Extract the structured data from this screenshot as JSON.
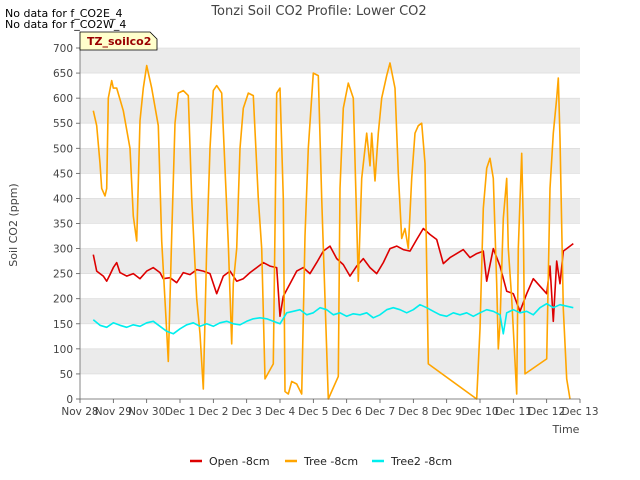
{
  "chart_data": {
    "type": "line",
    "title": "Tonzi Soil CO2 Profile: Lower CO2",
    "xlabel": "Time",
    "ylabel": "Soil CO2 (ppm)",
    "ylim": [
      0,
      700
    ],
    "yticks": [
      0,
      50,
      100,
      150,
      200,
      250,
      300,
      350,
      400,
      450,
      500,
      550,
      600,
      650,
      700
    ],
    "xlim": [
      0,
      15
    ],
    "xticks": [
      {
        "x": 0,
        "label": "Nov 28"
      },
      {
        "x": 1,
        "label": "Nov 29"
      },
      {
        "x": 2,
        "label": "Nov 30"
      },
      {
        "x": 3,
        "label": "Dec 1"
      },
      {
        "x": 4,
        "label": "Dec 2"
      },
      {
        "x": 5,
        "label": "Dec 3"
      },
      {
        "x": 6,
        "label": "Dec 4"
      },
      {
        "x": 7,
        "label": "Dec 5"
      },
      {
        "x": 8,
        "label": "Dec 6"
      },
      {
        "x": 9,
        "label": "Dec 7"
      },
      {
        "x": 10,
        "label": "Dec 8"
      },
      {
        "x": 11,
        "label": "Dec 9"
      },
      {
        "x": 12,
        "label": "Dec 10"
      },
      {
        "x": 13,
        "label": "Dec 11"
      },
      {
        "x": 14,
        "label": "Dec 12"
      },
      {
        "x": 15,
        "label": "Dec 13"
      }
    ],
    "notices": [
      "No data for f_CO2E_4",
      "No data for f_CO2W_4"
    ],
    "site_label": "TZ_soilco2",
    "legend_position": "bottom-center",
    "series": [
      {
        "name": "Open -8cm",
        "color": "#dd0000",
        "points": [
          [
            0.4,
            288
          ],
          [
            0.5,
            255
          ],
          [
            0.7,
            245
          ],
          [
            0.8,
            235
          ],
          [
            0.9,
            248
          ],
          [
            1.0,
            262
          ],
          [
            1.1,
            272
          ],
          [
            1.2,
            252
          ],
          [
            1.4,
            245
          ],
          [
            1.6,
            250
          ],
          [
            1.8,
            240
          ],
          [
            2.0,
            255
          ],
          [
            2.2,
            262
          ],
          [
            2.4,
            252
          ],
          [
            2.5,
            240
          ],
          [
            2.7,
            242
          ],
          [
            2.9,
            232
          ],
          [
            3.1,
            252
          ],
          [
            3.3,
            248
          ],
          [
            3.5,
            258
          ],
          [
            3.7,
            255
          ],
          [
            3.9,
            250
          ],
          [
            4.1,
            210
          ],
          [
            4.3,
            245
          ],
          [
            4.5,
            255
          ],
          [
            4.7,
            235
          ],
          [
            4.9,
            240
          ],
          [
            5.1,
            252
          ],
          [
            5.3,
            262
          ],
          [
            5.5,
            272
          ],
          [
            5.7,
            265
          ],
          [
            5.9,
            262
          ],
          [
            6.0,
            165
          ],
          [
            6.1,
            205
          ],
          [
            6.3,
            230
          ],
          [
            6.5,
            255
          ],
          [
            6.7,
            262
          ],
          [
            6.9,
            250
          ],
          [
            7.1,
            272
          ],
          [
            7.3,
            295
          ],
          [
            7.5,
            305
          ],
          [
            7.7,
            280
          ],
          [
            7.9,
            268
          ],
          [
            8.1,
            245
          ],
          [
            8.3,
            265
          ],
          [
            8.5,
            280
          ],
          [
            8.7,
            262
          ],
          [
            8.9,
            250
          ],
          [
            9.1,
            272
          ],
          [
            9.3,
            300
          ],
          [
            9.5,
            305
          ],
          [
            9.7,
            298
          ],
          [
            9.9,
            295
          ],
          [
            10.1,
            318
          ],
          [
            10.3,
            340
          ],
          [
            10.5,
            328
          ],
          [
            10.7,
            318
          ],
          [
            10.9,
            270
          ],
          [
            11.1,
            282
          ],
          [
            11.3,
            290
          ],
          [
            11.5,
            298
          ],
          [
            11.7,
            282
          ],
          [
            11.9,
            290
          ],
          [
            12.1,
            295
          ],
          [
            12.2,
            235
          ],
          [
            12.4,
            300
          ],
          [
            12.6,
            265
          ],
          [
            12.8,
            215
          ],
          [
            13.0,
            210
          ],
          [
            13.2,
            175
          ],
          [
            13.4,
            210
          ],
          [
            13.6,
            240
          ],
          [
            13.8,
            225
          ],
          [
            14.0,
            210
          ],
          [
            14.1,
            265
          ],
          [
            14.2,
            155
          ],
          [
            14.3,
            275
          ],
          [
            14.4,
            230
          ],
          [
            14.5,
            295
          ],
          [
            14.6,
            300
          ],
          [
            14.8,
            310
          ]
        ]
      },
      {
        "name": "Tree -8cm",
        "color": "#ffa500",
        "points": [
          [
            0.4,
            575
          ],
          [
            0.5,
            545
          ],
          [
            0.6,
            470
          ],
          [
            0.65,
            420
          ],
          [
            0.75,
            405
          ],
          [
            0.8,
            420
          ],
          [
            0.85,
            600
          ],
          [
            0.95,
            635
          ],
          [
            1.0,
            620
          ],
          [
            1.1,
            620
          ],
          [
            1.3,
            575
          ],
          [
            1.5,
            500
          ],
          [
            1.6,
            365
          ],
          [
            1.7,
            315
          ],
          [
            1.8,
            555
          ],
          [
            1.9,
            620
          ],
          [
            2.0,
            665
          ],
          [
            2.15,
            620
          ],
          [
            2.35,
            545
          ],
          [
            2.45,
            315
          ],
          [
            2.6,
            135
          ],
          [
            2.65,
            75
          ],
          [
            2.75,
            325
          ],
          [
            2.85,
            550
          ],
          [
            2.95,
            610
          ],
          [
            3.1,
            615
          ],
          [
            3.25,
            605
          ],
          [
            3.35,
            400
          ],
          [
            3.5,
            200
          ],
          [
            3.6,
            130
          ],
          [
            3.7,
            20
          ],
          [
            3.8,
            300
          ],
          [
            3.9,
            500
          ],
          [
            4.0,
            615
          ],
          [
            4.1,
            625
          ],
          [
            4.25,
            610
          ],
          [
            4.45,
            310
          ],
          [
            4.55,
            110
          ],
          [
            4.6,
            230
          ],
          [
            4.7,
            300
          ],
          [
            4.8,
            500
          ],
          [
            4.9,
            580
          ],
          [
            5.05,
            610
          ],
          [
            5.2,
            605
          ],
          [
            5.35,
            400
          ],
          [
            5.45,
            300
          ],
          [
            5.55,
            40
          ],
          [
            5.8,
            70
          ],
          [
            5.9,
            610
          ],
          [
            6.0,
            620
          ],
          [
            6.1,
            400
          ],
          [
            6.15,
            15
          ],
          [
            6.25,
            10
          ],
          [
            6.35,
            35
          ],
          [
            6.5,
            30
          ],
          [
            6.65,
            10
          ],
          [
            6.75,
            325
          ],
          [
            6.85,
            500
          ],
          [
            7.0,
            650
          ],
          [
            7.15,
            645
          ],
          [
            7.25,
            400
          ],
          [
            7.35,
            200
          ],
          [
            7.45,
            0
          ],
          [
            7.75,
            45
          ],
          [
            7.8,
            420
          ],
          [
            7.9,
            580
          ],
          [
            8.05,
            630
          ],
          [
            8.2,
            600
          ],
          [
            8.35,
            235
          ],
          [
            8.45,
            440
          ],
          [
            8.6,
            530
          ],
          [
            8.7,
            465
          ],
          [
            8.75,
            530
          ],
          [
            8.85,
            435
          ],
          [
            8.95,
            530
          ],
          [
            9.05,
            600
          ],
          [
            9.2,
            645
          ],
          [
            9.3,
            670
          ],
          [
            9.45,
            620
          ],
          [
            9.55,
            450
          ],
          [
            9.65,
            320
          ],
          [
            9.75,
            340
          ],
          [
            9.85,
            300
          ],
          [
            9.95,
            440
          ],
          [
            10.05,
            530
          ],
          [
            10.15,
            545
          ],
          [
            10.25,
            550
          ],
          [
            10.35,
            470
          ],
          [
            10.45,
            70
          ],
          [
            11.9,
            0
          ],
          [
            12.0,
            140
          ],
          [
            12.1,
            380
          ],
          [
            12.2,
            460
          ],
          [
            12.3,
            480
          ],
          [
            12.4,
            440
          ],
          [
            12.5,
            230
          ],
          [
            12.55,
            100
          ],
          [
            12.6,
            150
          ],
          [
            12.7,
            360
          ],
          [
            12.8,
            440
          ],
          [
            12.85,
            300
          ],
          [
            12.95,
            200
          ],
          [
            13.1,
            10
          ],
          [
            13.15,
            300
          ],
          [
            13.25,
            490
          ],
          [
            13.3,
            350
          ],
          [
            13.35,
            50
          ],
          [
            14.0,
            80
          ],
          [
            14.1,
            420
          ],
          [
            14.2,
            530
          ],
          [
            14.3,
            600
          ],
          [
            14.35,
            640
          ],
          [
            14.4,
            520
          ],
          [
            14.5,
            180
          ],
          [
            14.6,
            40
          ],
          [
            14.7,
            0
          ]
        ]
      },
      {
        "name": "Tree2 -8cm",
        "color": "#00eeee",
        "points": [
          [
            0.4,
            158
          ],
          [
            0.6,
            147
          ],
          [
            0.8,
            143
          ],
          [
            1.0,
            152
          ],
          [
            1.2,
            147
          ],
          [
            1.4,
            143
          ],
          [
            1.6,
            148
          ],
          [
            1.8,
            145
          ],
          [
            2.0,
            152
          ],
          [
            2.2,
            155
          ],
          [
            2.4,
            145
          ],
          [
            2.6,
            135
          ],
          [
            2.8,
            130
          ],
          [
            3.0,
            140
          ],
          [
            3.2,
            148
          ],
          [
            3.4,
            152
          ],
          [
            3.6,
            145
          ],
          [
            3.8,
            150
          ],
          [
            4.0,
            145
          ],
          [
            4.2,
            152
          ],
          [
            4.4,
            155
          ],
          [
            4.6,
            150
          ],
          [
            4.8,
            148
          ],
          [
            5.0,
            155
          ],
          [
            5.2,
            160
          ],
          [
            5.4,
            162
          ],
          [
            5.6,
            160
          ],
          [
            5.8,
            155
          ],
          [
            6.0,
            150
          ],
          [
            6.2,
            172
          ],
          [
            6.4,
            175
          ],
          [
            6.6,
            178
          ],
          [
            6.8,
            168
          ],
          [
            7.0,
            172
          ],
          [
            7.2,
            182
          ],
          [
            7.4,
            178
          ],
          [
            7.6,
            168
          ],
          [
            7.8,
            172
          ],
          [
            8.0,
            165
          ],
          [
            8.2,
            170
          ],
          [
            8.4,
            168
          ],
          [
            8.6,
            172
          ],
          [
            8.8,
            162
          ],
          [
            9.0,
            168
          ],
          [
            9.2,
            178
          ],
          [
            9.4,
            182
          ],
          [
            9.6,
            178
          ],
          [
            9.8,
            172
          ],
          [
            10.0,
            178
          ],
          [
            10.2,
            188
          ],
          [
            10.4,
            182
          ],
          [
            10.6,
            175
          ],
          [
            10.8,
            168
          ],
          [
            11.0,
            165
          ],
          [
            11.2,
            172
          ],
          [
            11.4,
            168
          ],
          [
            11.6,
            172
          ],
          [
            11.8,
            165
          ],
          [
            12.0,
            172
          ],
          [
            12.2,
            178
          ],
          [
            12.4,
            175
          ],
          [
            12.6,
            168
          ],
          [
            12.7,
            130
          ],
          [
            12.8,
            172
          ],
          [
            13.0,
            178
          ],
          [
            13.2,
            172
          ],
          [
            13.4,
            175
          ],
          [
            13.6,
            168
          ],
          [
            13.8,
            182
          ],
          [
            14.0,
            190
          ],
          [
            14.2,
            182
          ],
          [
            14.4,
            188
          ],
          [
            14.6,
            185
          ],
          [
            14.8,
            182
          ]
        ]
      }
    ]
  }
}
